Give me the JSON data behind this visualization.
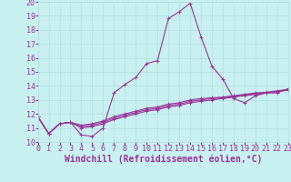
{
  "title": "",
  "xlabel": "Windchill (Refroidissement éolien,°C)",
  "ylabel": "",
  "xlim": [
    0,
    23
  ],
  "ylim": [
    10,
    20
  ],
  "xticks": [
    0,
    1,
    2,
    3,
    4,
    5,
    6,
    7,
    8,
    9,
    10,
    11,
    12,
    13,
    14,
    15,
    16,
    17,
    18,
    19,
    20,
    21,
    22,
    23
  ],
  "yticks": [
    10,
    11,
    12,
    13,
    14,
    15,
    16,
    17,
    18,
    19,
    20
  ],
  "background_color": "#c8f0f0",
  "grid_color": "#b0dede",
  "line_color": "#993399",
  "curve1": [
    11.8,
    10.6,
    11.3,
    11.4,
    10.5,
    10.4,
    11.0,
    13.5,
    14.1,
    14.6,
    15.6,
    15.8,
    18.8,
    19.3,
    19.9,
    17.5,
    15.4,
    14.5,
    13.1,
    12.8,
    13.3,
    13.5,
    13.5,
    13.8
  ],
  "curve2": [
    11.8,
    10.6,
    11.3,
    11.4,
    11.0,
    11.1,
    11.3,
    11.6,
    11.8,
    12.0,
    12.2,
    12.3,
    12.5,
    12.6,
    12.8,
    12.9,
    13.0,
    13.1,
    13.2,
    13.3,
    13.4,
    13.5,
    13.6,
    13.7
  ],
  "curve3": [
    11.8,
    10.6,
    11.3,
    11.4,
    11.1,
    11.2,
    11.4,
    11.7,
    11.9,
    12.1,
    12.3,
    12.4,
    12.6,
    12.7,
    12.9,
    13.0,
    13.1,
    13.15,
    13.25,
    13.35,
    13.45,
    13.5,
    13.6,
    13.7
  ],
  "curve4": [
    11.8,
    10.6,
    11.3,
    11.4,
    11.2,
    11.3,
    11.5,
    11.8,
    12.0,
    12.2,
    12.4,
    12.5,
    12.7,
    12.8,
    13.0,
    13.1,
    13.15,
    13.2,
    13.3,
    13.4,
    13.5,
    13.55,
    13.65,
    13.75
  ],
  "xlabel_fontsize": 7,
  "tick_fontsize": 6,
  "tick_color": "#993399"
}
